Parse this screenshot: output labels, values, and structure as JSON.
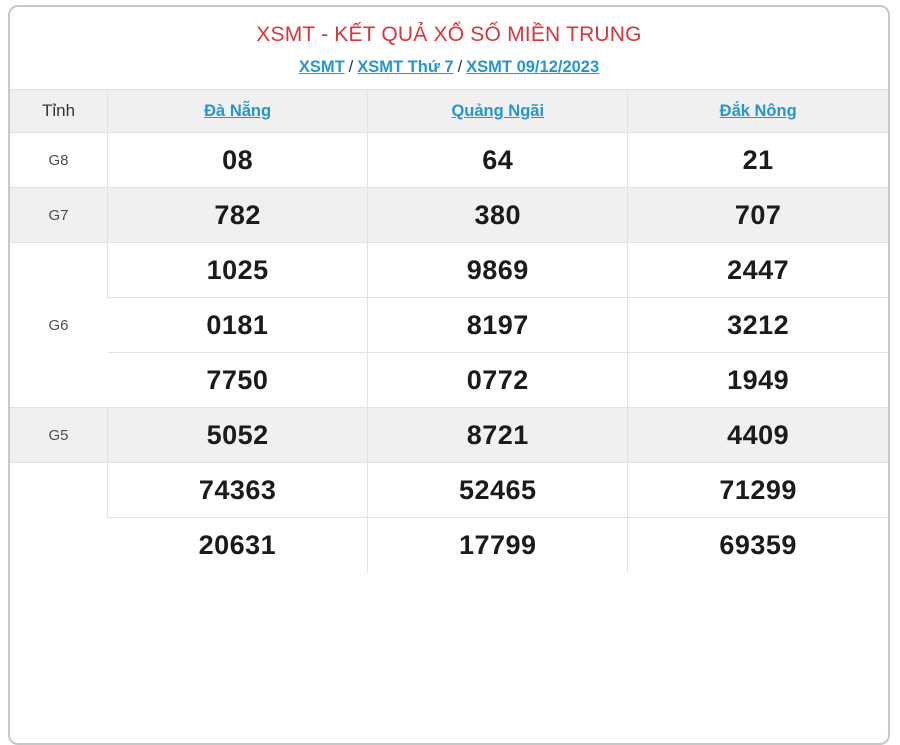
{
  "header": {
    "title": "XSMT - KẾT QUẢ XỔ SỐ MIỀN TRUNG",
    "breadcrumb": {
      "separator": "/",
      "items": [
        "XSMT",
        "XSMT Thứ 7",
        "XSMT 09/12/2023"
      ]
    }
  },
  "table": {
    "corner_label": "Tỉnh",
    "provinces": [
      "Đà Nẵng",
      "Quảng Ngãi",
      "Đắk Nông"
    ],
    "prizes": {
      "g8": {
        "label": "G8",
        "values": [
          "08",
          "64",
          "21"
        ]
      },
      "g7": {
        "label": "G7",
        "values": [
          "782",
          "380",
          "707"
        ]
      },
      "g6": {
        "label": "G6",
        "rows": [
          [
            "1025",
            "9869",
            "2447"
          ],
          [
            "0181",
            "8197",
            "3212"
          ],
          [
            "7750",
            "0772",
            "1949"
          ]
        ]
      },
      "g5": {
        "label": "G5",
        "values": [
          "5052",
          "8721",
          "4409"
        ]
      },
      "g4_visible": {
        "label": "",
        "rows": [
          [
            "74363",
            "52465",
            "71299"
          ],
          [
            "20631",
            "17799",
            "69359"
          ]
        ]
      }
    }
  },
  "colors": {
    "title_red": "#d8353d",
    "link_blue": "#2596d1",
    "shade_gray": "#f0f0f0",
    "border_gray": "#e2e2e2",
    "outer_border": "#c8c8c8",
    "number_black": "#1b1b1b",
    "label_gray": "#4d4d4d",
    "dark_text": "#333333"
  }
}
